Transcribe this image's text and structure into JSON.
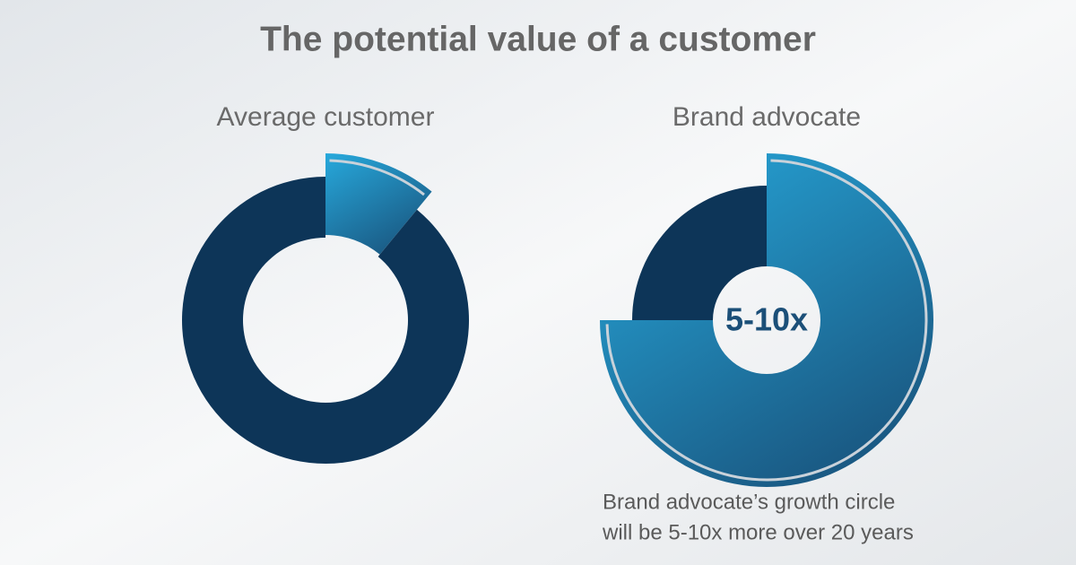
{
  "title": "The potential value of a customer",
  "chart_data": [
    {
      "type": "donut",
      "title": "Average customer",
      "values": [
        11,
        89
      ],
      "colors": [
        "#27a9dc",
        "#0d3558"
      ]
    },
    {
      "type": "donut",
      "title": "Brand advocate",
      "values": [
        75,
        25
      ],
      "colors": [
        "#27a9dc",
        "#0d3558"
      ],
      "center_label": "5-10x",
      "annotation": [
        "Brand advocate’s growth circle",
        "will be 5-10x more over 20 years"
      ]
    }
  ]
}
